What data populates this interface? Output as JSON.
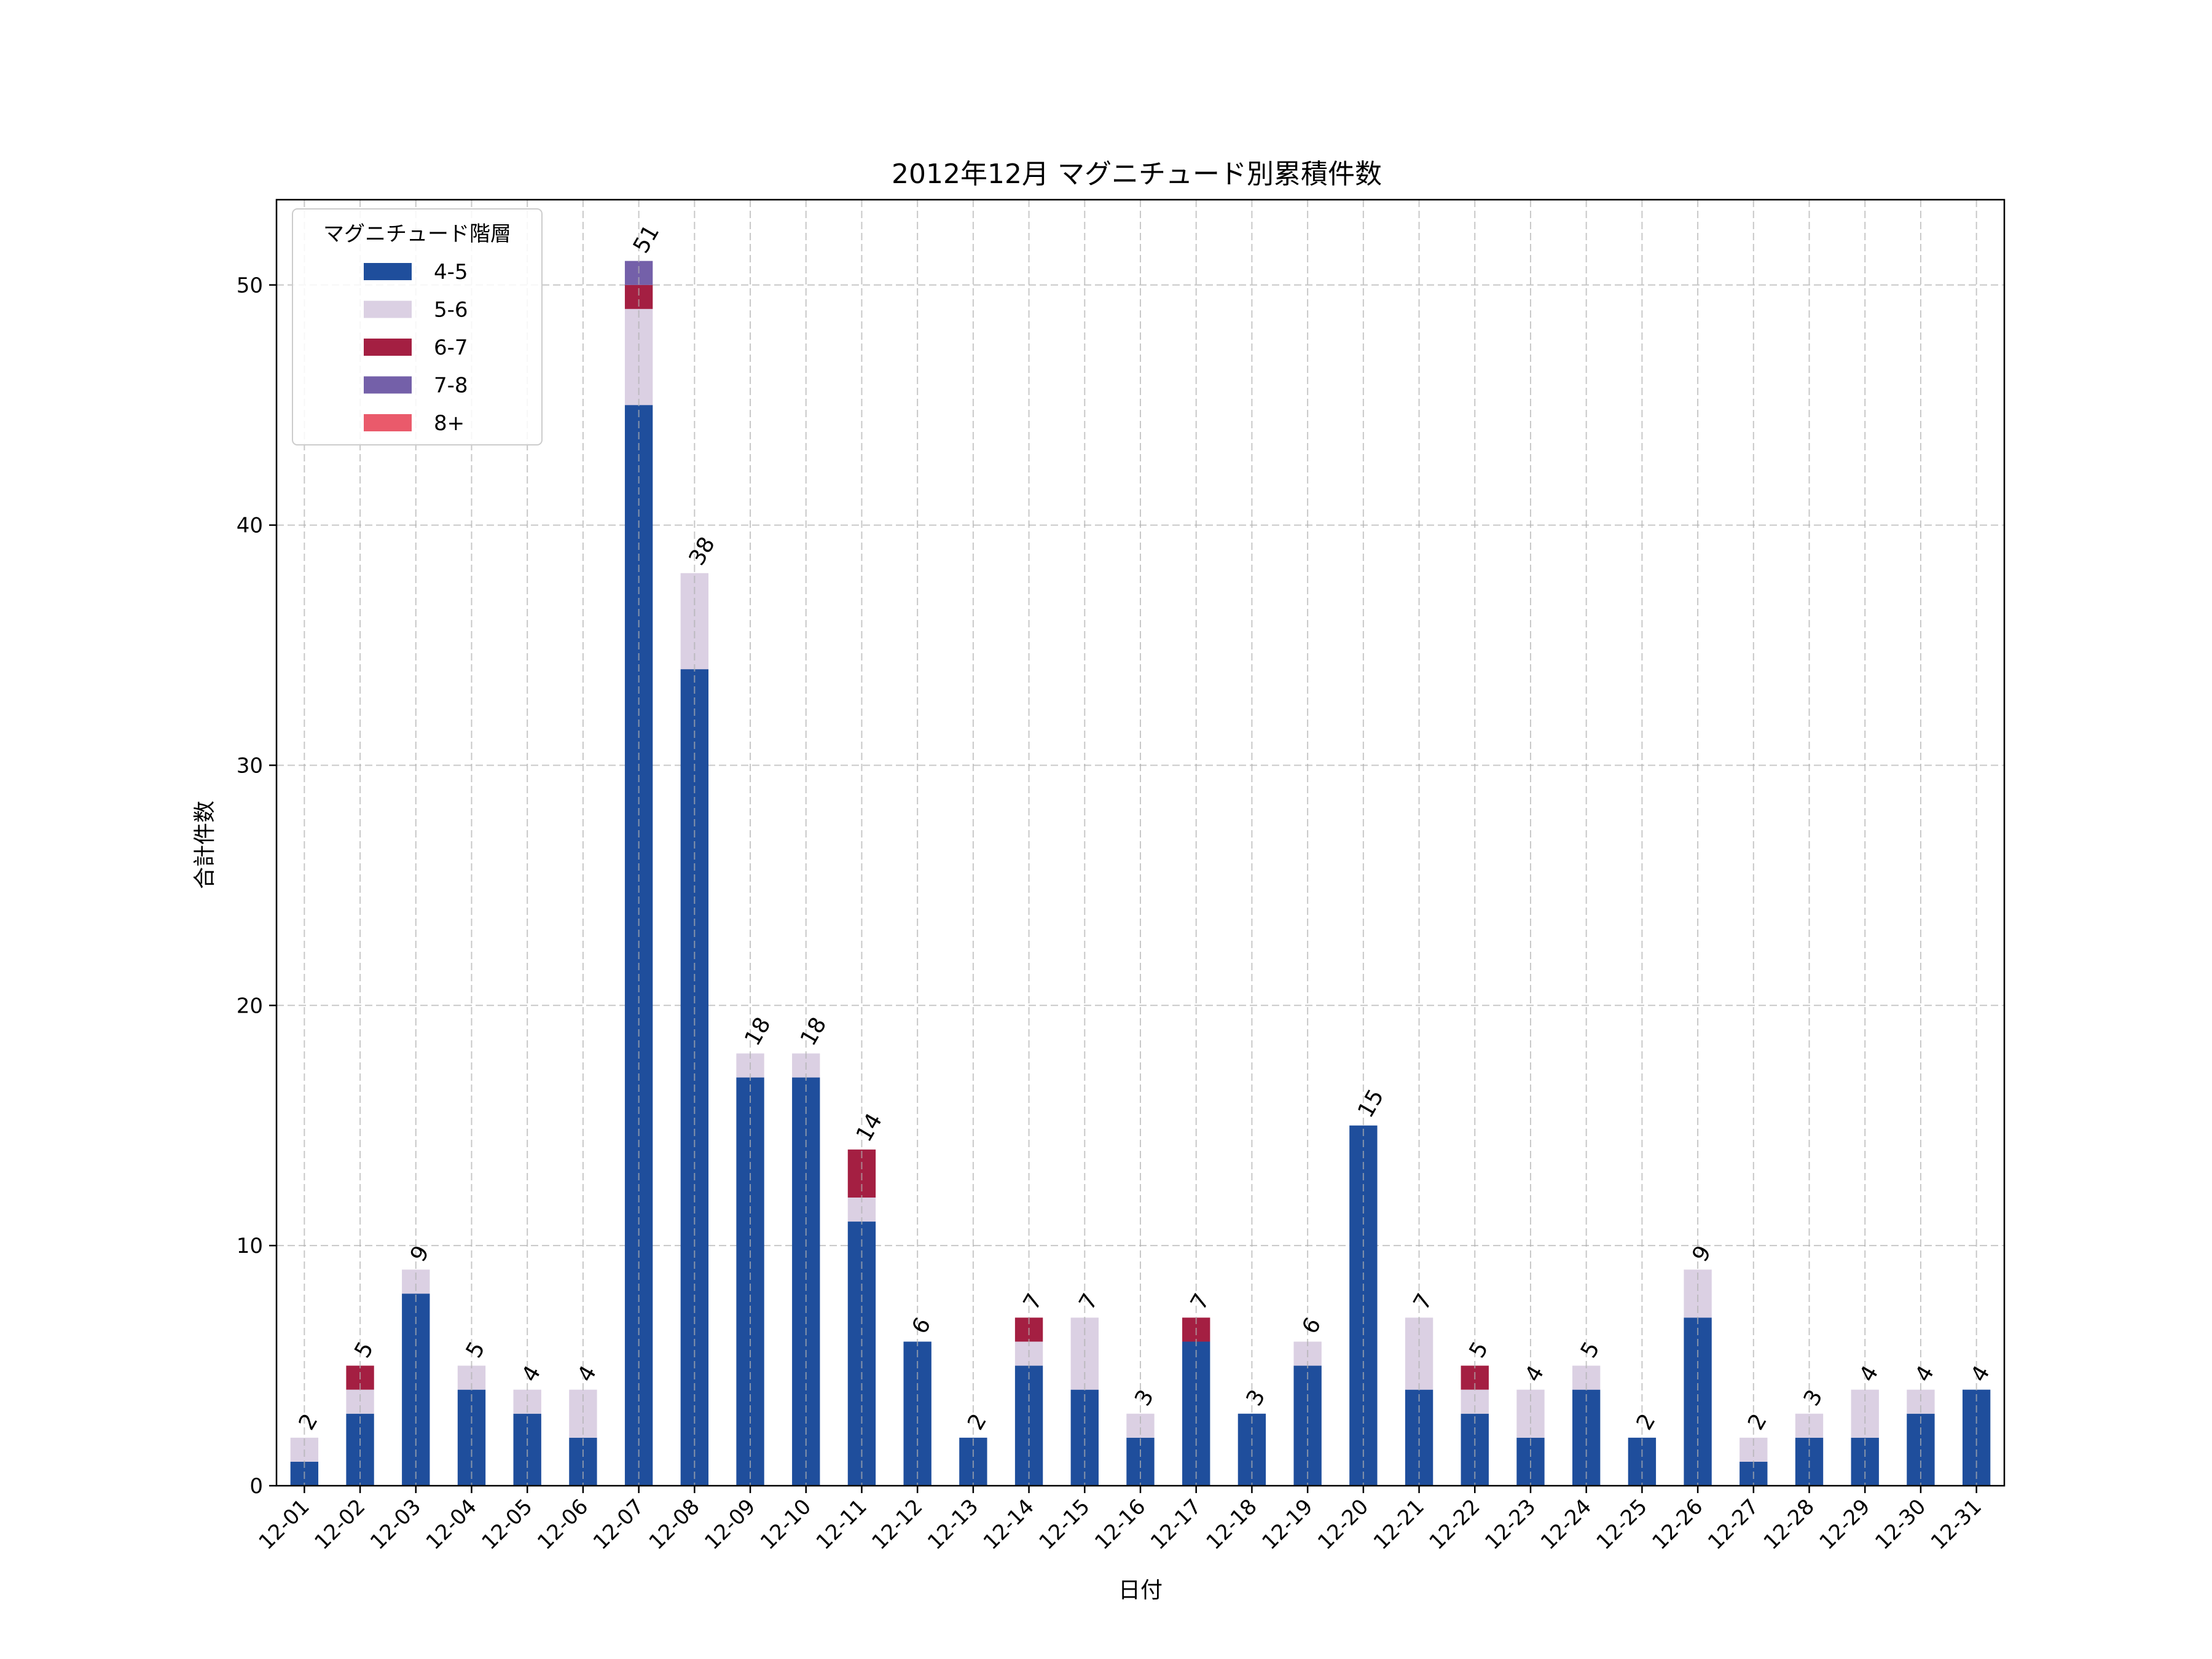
{
  "chart_data": {
    "type": "bar",
    "stacked": true,
    "title": "2012年12月 マグニチュード別累積件数",
    "xlabel": "日付",
    "ylabel": "合計件数",
    "ylim": [
      0,
      53.55
    ],
    "yticks": [
      0,
      10,
      20,
      30,
      40,
      50
    ],
    "grid": true,
    "legend": {
      "title": "マグニチュード階層",
      "placement": "top-left"
    },
    "categories": [
      "12-01",
      "12-02",
      "12-03",
      "12-04",
      "12-05",
      "12-06",
      "12-07",
      "12-08",
      "12-09",
      "12-10",
      "12-11",
      "12-12",
      "12-13",
      "12-14",
      "12-15",
      "12-16",
      "12-17",
      "12-18",
      "12-19",
      "12-20",
      "12-21",
      "12-22",
      "12-23",
      "12-24",
      "12-25",
      "12-26",
      "12-27",
      "12-28",
      "12-29",
      "12-30",
      "12-31"
    ],
    "series": [
      {
        "name": "4-5",
        "color": "#1f4e9c",
        "values": [
          1,
          3,
          8,
          4,
          3,
          2,
          45,
          34,
          17,
          17,
          11,
          6,
          2,
          5,
          4,
          2,
          6,
          3,
          5,
          15,
          4,
          3,
          2,
          4,
          2,
          7,
          1,
          2,
          2,
          3,
          4
        ]
      },
      {
        "name": "5-6",
        "color": "#dbd0e3",
        "values": [
          1,
          1,
          1,
          1,
          1,
          2,
          4,
          4,
          1,
          1,
          1,
          0,
          0,
          1,
          3,
          1,
          0,
          0,
          1,
          0,
          3,
          1,
          2,
          1,
          0,
          2,
          1,
          1,
          2,
          1,
          0
        ]
      },
      {
        "name": "6-7",
        "color": "#a41f42",
        "values": [
          0,
          1,
          0,
          0,
          0,
          0,
          1,
          0,
          0,
          0,
          2,
          0,
          0,
          1,
          0,
          0,
          1,
          0,
          0,
          0,
          0,
          1,
          0,
          0,
          0,
          0,
          0,
          0,
          0,
          0,
          0
        ]
      },
      {
        "name": "7-8",
        "color": "#7460a9",
        "values": [
          0,
          0,
          0,
          0,
          0,
          0,
          1,
          0,
          0,
          0,
          0,
          0,
          0,
          0,
          0,
          0,
          0,
          0,
          0,
          0,
          0,
          0,
          0,
          0,
          0,
          0,
          0,
          0,
          0,
          0,
          0
        ]
      },
      {
        "name": "8+",
        "color": "#ea5a6b",
        "values": [
          0,
          0,
          0,
          0,
          0,
          0,
          0,
          0,
          0,
          0,
          0,
          0,
          0,
          0,
          0,
          0,
          0,
          0,
          0,
          0,
          0,
          0,
          0,
          0,
          0,
          0,
          0,
          0,
          0,
          0,
          0
        ]
      }
    ],
    "totals": [
      2,
      5,
      9,
      5,
      4,
      4,
      51,
      38,
      18,
      18,
      14,
      6,
      2,
      7,
      7,
      3,
      7,
      3,
      6,
      15,
      7,
      5,
      4,
      5,
      2,
      9,
      2,
      3,
      4,
      4,
      4
    ]
  }
}
